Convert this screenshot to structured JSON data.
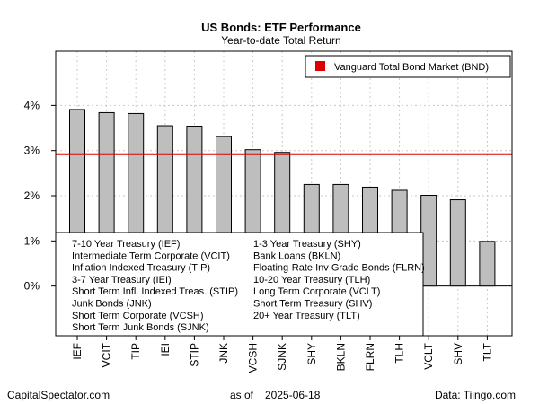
{
  "chart_data": {
    "type": "bar",
    "title": "US Bonds: ETF Performance",
    "subtitle": "Year-to-date Total Return",
    "categories": [
      "IEF",
      "VCIT",
      "TIP",
      "IEI",
      "STIP",
      "JNK",
      "VCSH",
      "SJNK",
      "SHY",
      "BKLN",
      "FLRN",
      "TLH",
      "VCLT",
      "SHV",
      "TLT"
    ],
    "values": [
      3.91,
      3.84,
      3.82,
      3.55,
      3.54,
      3.31,
      3.02,
      2.96,
      2.25,
      2.25,
      2.19,
      2.12,
      2.01,
      1.91,
      0.99
    ],
    "ylim": [
      -1.1,
      5.2
    ],
    "yticks": [
      0,
      1,
      2,
      3,
      4
    ],
    "ytick_labels": [
      "0%",
      "1%",
      "2%",
      "3%",
      "4%"
    ],
    "reference_line": {
      "value": 2.92,
      "label": "Vanguard Total Bond Market (BND)",
      "color": "#dd0000"
    },
    "bar_color": "#bebebe",
    "legend_entries": [
      "7-10 Year Treasury (IEF)",
      "Intermediate Term Corporate (VCIT)",
      "Inflation Indexed Treasury (TIP)",
      "3-7 Year Treasury (IEI)",
      "Short Term Infl. Indexed Treas. (STIP)",
      "Junk Bonds (JNK)",
      "Short Term Corporate (VCSH)",
      "Short Term Junk Bonds (SJNK)",
      "1-3 Year Treasury (SHY)",
      "Bank Loans (BKLN)",
      "Floating-Rate Inv Grade Bonds (FLRN)",
      "10-20 Year Treasury (TLH)",
      "Long Term Corporate (VCLT)",
      "Short Term Treasury (SHV)",
      "20+ Year Treasury (TLT)"
    ],
    "grid": true
  },
  "footer": {
    "source_left": "CapitalSpectator.com",
    "as_of_label": "as of",
    "date": "2025-06-18",
    "data_source": "Data: Tiingo.com"
  }
}
